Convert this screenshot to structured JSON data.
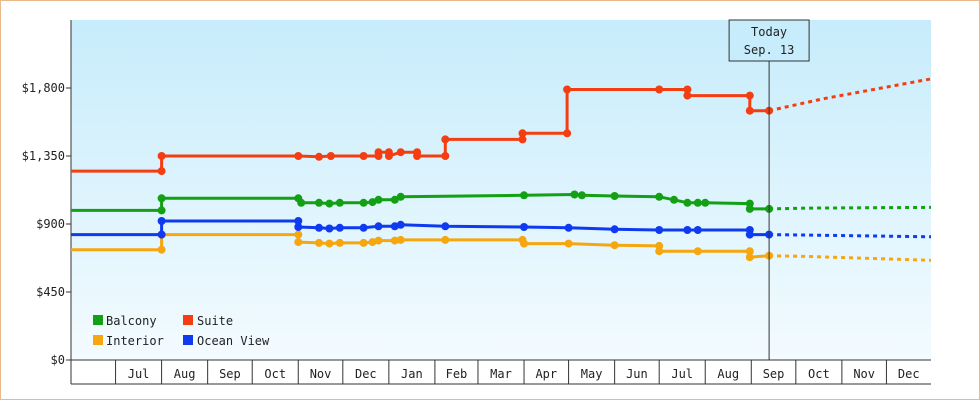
{
  "chart_data": {
    "type": "line",
    "title": "",
    "xlabel": "",
    "ylabel": "",
    "ylim": [
      0,
      2250
    ],
    "y_ticks": [
      {
        "value": 0,
        "label": "$0"
      },
      {
        "value": 450,
        "label": "$450"
      },
      {
        "value": 900,
        "label": "$900"
      },
      {
        "value": 1350,
        "label": "$1,350"
      },
      {
        "value": 1800,
        "label": "$1,800"
      }
    ],
    "x_range": [
      "2023-06-01",
      "2024-12-31"
    ],
    "x_ticks": [
      {
        "date": "2023-07-01",
        "label": "Jul"
      },
      {
        "date": "2023-08-01",
        "label": "Aug"
      },
      {
        "date": "2023-09-01",
        "label": "Sep"
      },
      {
        "date": "2023-10-01",
        "label": "Oct"
      },
      {
        "date": "2023-11-01",
        "label": "Nov"
      },
      {
        "date": "2023-12-01",
        "label": "Dec"
      },
      {
        "date": "2024-01-01",
        "label": "Jan"
      },
      {
        "date": "2024-02-01",
        "label": "Feb"
      },
      {
        "date": "2024-03-01",
        "label": "Mar"
      },
      {
        "date": "2024-04-01",
        "label": "Apr"
      },
      {
        "date": "2024-05-01",
        "label": "May"
      },
      {
        "date": "2024-06-01",
        "label": "Jun"
      },
      {
        "date": "2024-07-01",
        "label": "Jul"
      },
      {
        "date": "2024-08-01",
        "label": "Aug"
      },
      {
        "date": "2024-09-01",
        "label": "Sep"
      },
      {
        "date": "2024-10-01",
        "label": "Oct"
      },
      {
        "date": "2024-11-01",
        "label": "Nov"
      },
      {
        "date": "2024-12-01",
        "label": "Dec"
      }
    ],
    "today": {
      "date": "2024-09-13",
      "line1": "Today",
      "line2": "Sep. 13"
    },
    "legend_position": "bottom-left",
    "grid": false,
    "series": [
      {
        "name": "Balcony",
        "color": "#13a014",
        "points": [
          [
            "2023-06-01",
            990
          ],
          [
            "2023-08-01",
            990
          ],
          [
            "2023-08-01",
            1070
          ],
          [
            "2023-11-01",
            1070
          ],
          [
            "2023-11-03",
            1040
          ],
          [
            "2023-11-15",
            1040
          ],
          [
            "2023-11-22",
            1035
          ],
          [
            "2023-11-29",
            1040
          ],
          [
            "2023-12-15",
            1040
          ],
          [
            "2023-12-21",
            1045
          ],
          [
            "2023-12-25",
            1060
          ],
          [
            "2024-01-05",
            1060
          ],
          [
            "2024-01-09",
            1080
          ],
          [
            "2024-04-01",
            1090
          ],
          [
            "2024-05-05",
            1095
          ],
          [
            "2024-05-10",
            1090
          ],
          [
            "2024-06-01",
            1085
          ],
          [
            "2024-07-01",
            1080
          ],
          [
            "2024-07-11",
            1060
          ],
          [
            "2024-07-20",
            1040
          ],
          [
            "2024-07-27",
            1040
          ],
          [
            "2024-08-01",
            1040
          ],
          [
            "2024-08-31",
            1035
          ],
          [
            "2024-08-31",
            1000
          ],
          [
            "2024-09-13",
            1000
          ]
        ],
        "forecast": [
          [
            "2024-09-13",
            1000
          ],
          [
            "2024-10-10",
            1005
          ],
          [
            "2024-12-31",
            1010
          ]
        ]
      },
      {
        "name": "Suite",
        "color": "#f43e11",
        "points": [
          [
            "2023-06-01",
            1250
          ],
          [
            "2023-08-01",
            1250
          ],
          [
            "2023-08-01",
            1350
          ],
          [
            "2023-11-01",
            1350
          ],
          [
            "2023-11-15",
            1345
          ],
          [
            "2023-11-23",
            1350
          ],
          [
            "2023-12-15",
            1350
          ],
          [
            "2023-12-25",
            1350
          ],
          [
            "2023-12-25",
            1375
          ],
          [
            "2024-01-01",
            1375
          ],
          [
            "2024-01-01",
            1350
          ],
          [
            "2024-01-09",
            1375
          ],
          [
            "2024-01-20",
            1375
          ],
          [
            "2024-01-20",
            1350
          ],
          [
            "2024-02-08",
            1350
          ],
          [
            "2024-02-08",
            1460
          ],
          [
            "2024-03-31",
            1460
          ],
          [
            "2024-03-31",
            1500
          ],
          [
            "2024-04-30",
            1500
          ],
          [
            "2024-04-30",
            1790
          ],
          [
            "2024-07-01",
            1790
          ],
          [
            "2024-07-20",
            1790
          ],
          [
            "2024-07-20",
            1750
          ],
          [
            "2024-08-31",
            1750
          ],
          [
            "2024-08-31",
            1650
          ],
          [
            "2024-09-13",
            1650
          ]
        ],
        "forecast": [
          [
            "2024-09-13",
            1650
          ],
          [
            "2024-10-20",
            1730
          ],
          [
            "2024-12-31",
            1860
          ]
        ]
      },
      {
        "name": "Interior",
        "color": "#f6a60e",
        "points": [
          [
            "2023-06-01",
            730
          ],
          [
            "2023-08-01",
            730
          ],
          [
            "2023-08-01",
            830
          ],
          [
            "2023-11-01",
            830
          ],
          [
            "2023-11-01",
            780
          ],
          [
            "2023-11-15",
            775
          ],
          [
            "2023-11-22",
            770
          ],
          [
            "2023-11-29",
            775
          ],
          [
            "2023-12-15",
            775
          ],
          [
            "2023-12-21",
            780
          ],
          [
            "2023-12-25",
            790
          ],
          [
            "2024-01-05",
            790
          ],
          [
            "2024-01-09",
            795
          ],
          [
            "2024-02-08",
            795
          ],
          [
            "2024-03-31",
            795
          ],
          [
            "2024-04-01",
            770
          ],
          [
            "2024-05-01",
            770
          ],
          [
            "2024-06-01",
            760
          ],
          [
            "2024-07-01",
            755
          ],
          [
            "2024-07-01",
            720
          ],
          [
            "2024-07-27",
            720
          ],
          [
            "2024-08-31",
            720
          ],
          [
            "2024-08-31",
            680
          ],
          [
            "2024-09-13",
            690
          ]
        ],
        "forecast": [
          [
            "2024-09-13",
            690
          ],
          [
            "2024-10-10",
            685
          ],
          [
            "2024-12-31",
            660
          ]
        ]
      },
      {
        "name": "Ocean View",
        "color": "#0f3bf0",
        "points": [
          [
            "2023-06-01",
            830
          ],
          [
            "2023-08-01",
            830
          ],
          [
            "2023-08-01",
            920
          ],
          [
            "2023-11-01",
            920
          ],
          [
            "2023-11-01",
            880
          ],
          [
            "2023-11-15",
            875
          ],
          [
            "2023-11-22",
            870
          ],
          [
            "2023-11-29",
            875
          ],
          [
            "2023-12-15",
            875
          ],
          [
            "2023-12-25",
            885
          ],
          [
            "2024-01-05",
            885
          ],
          [
            "2024-01-09",
            895
          ],
          [
            "2024-02-08",
            885
          ],
          [
            "2024-04-01",
            880
          ],
          [
            "2024-05-01",
            875
          ],
          [
            "2024-06-01",
            865
          ],
          [
            "2024-07-01",
            860
          ],
          [
            "2024-07-20",
            860
          ],
          [
            "2024-07-27",
            860
          ],
          [
            "2024-08-31",
            860
          ],
          [
            "2024-08-31",
            830
          ],
          [
            "2024-09-13",
            830
          ]
        ],
        "forecast": [
          [
            "2024-09-13",
            830
          ],
          [
            "2024-10-20",
            825
          ],
          [
            "2024-12-31",
            815
          ]
        ]
      }
    ]
  }
}
